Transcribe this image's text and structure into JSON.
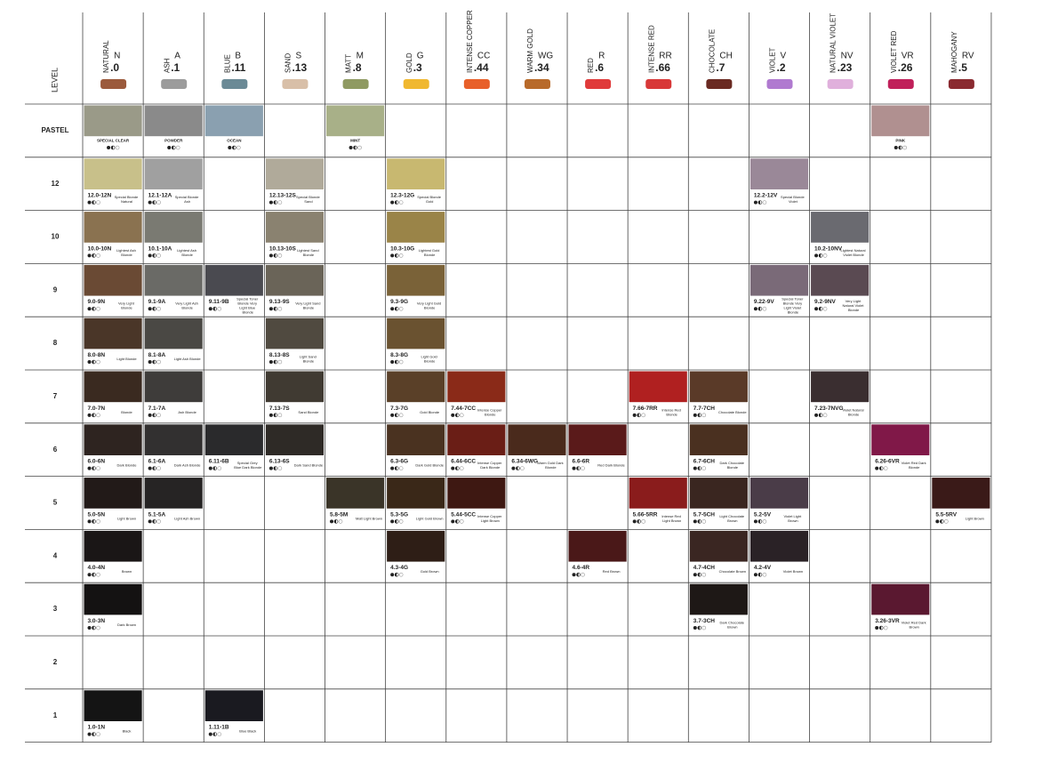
{
  "header": {
    "level_label": "LEVEL"
  },
  "columns": [
    {
      "family": "NATURAL",
      "code": "N",
      "suffix": ".0",
      "color": "#9b5a3c"
    },
    {
      "family": "ASH",
      "code": "A",
      "suffix": ".1",
      "color": "#9c9c9c"
    },
    {
      "family": "BLUE",
      "code": "B",
      "suffix": ".11",
      "color": "#6b8a96"
    },
    {
      "family": "SAND",
      "code": "S",
      "suffix": ".13",
      "color": "#d8bfa8"
    },
    {
      "family": "MATT",
      "code": "M",
      "suffix": ".8",
      "color": "#8f9a62"
    },
    {
      "family": "GOLD",
      "code": "G",
      "suffix": ".3",
      "color": "#f0b830"
    },
    {
      "family": "INTENSE COPPER",
      "code": "CC",
      "suffix": ".44",
      "color": "#e8602a"
    },
    {
      "family": "WARM GOLD",
      "code": "WG",
      "suffix": ".34",
      "color": "#b86a2a"
    },
    {
      "family": "RED",
      "code": "R",
      "suffix": ".6",
      "color": "#e03a3a"
    },
    {
      "family": "INTENSE RED",
      "code": "RR",
      "suffix": ".66",
      "color": "#d83838"
    },
    {
      "family": "CHOCOLATE",
      "code": "CH",
      "suffix": ".7",
      "color": "#6a2a22"
    },
    {
      "family": "VIOLET",
      "code": "V",
      "suffix": ".2",
      "color": "#b07ad0"
    },
    {
      "family": "NATURAL VIOLET",
      "code": "NV",
      "suffix": ".23",
      "color": "#e0b0dc"
    },
    {
      "family": "VIOLET RED",
      "code": "VR",
      "suffix": ".26",
      "color": "#c0205a"
    },
    {
      "family": "MAHOGANY",
      "code": "RV",
      "suffix": ".5",
      "color": "#8a2a30"
    }
  ],
  "rows": [
    {
      "level": "PASTEL",
      "cells": [
        {
          "name": "SPECIAL CLEAR",
          "color": "#9a9a88"
        },
        {
          "name": "POWDER",
          "color": "#8a8a8a"
        },
        {
          "name": "OCEAN",
          "color": "#8aa0b0"
        },
        null,
        {
          "name": "MINT",
          "color": "#a8b088"
        },
        null,
        null,
        null,
        null,
        null,
        null,
        null,
        null,
        {
          "name": "PINK",
          "color": "#b09090"
        },
        null
      ]
    },
    {
      "level": "12",
      "cells": [
        {
          "code": "12.0-12N",
          "name": "Special Blonde Natural",
          "color": "#c8c08a"
        },
        {
          "code": "12.1-12A",
          "name": "Special Blonde Ash",
          "color": "#a0a0a0"
        },
        null,
        {
          "code": "12.13-12S",
          "name": "Special Blonde Sand",
          "color": "#b0aa9a"
        },
        null,
        {
          "code": "12.3-12G",
          "name": "Special Blonde Gold",
          "color": "#c8b870"
        },
        null,
        null,
        null,
        null,
        null,
        {
          "code": "12.2-12V",
          "name": "Special Blonde Violet",
          "color": "#9a8898"
        },
        null,
        null,
        null
      ]
    },
    {
      "level": "10",
      "cells": [
        {
          "code": "10.0-10N",
          "name": "Lightest Ash Blonde",
          "color": "#8a7250"
        },
        {
          "code": "10.1-10A",
          "name": "Lightest Ash Blonde",
          "color": "#7a7a72"
        },
        null,
        {
          "code": "10.13-10S",
          "name": "Lightest Sand Blonde",
          "color": "#8a8270"
        },
        null,
        {
          "code": "10.3-10G",
          "name": "Lightest Gold Blonde",
          "color": "#9a8448"
        },
        null,
        null,
        null,
        null,
        null,
        null,
        {
          "code": "10.2-10NV",
          "name": "Lightest Natural Violet Blonde",
          "color": "#6a6a70"
        },
        null,
        null
      ]
    },
    {
      "level": "9",
      "cells": [
        {
          "code": "9.0-9N",
          "name": "Very Light Blonde",
          "color": "#6a4a34"
        },
        {
          "code": "9.1-9A",
          "name": "Very Light Ash Blonde",
          "color": "#6a6a66"
        },
        {
          "code": "9.11-9B",
          "name": "Special Toner Blonde Very Light Blue Blonde",
          "color": "#4a4a50"
        },
        {
          "code": "9.13-9S",
          "name": "Very Light Sand Blonde",
          "color": "#6a6458"
        },
        null,
        {
          "code": "9.3-9G",
          "name": "Very Light Gold Blonde",
          "color": "#7a6238"
        },
        null,
        null,
        null,
        null,
        null,
        {
          "code": "9.22-9V",
          "name": "Special Toner Blonde Very Light Violet Blonde",
          "color": "#7a6a78"
        },
        {
          "code": "9.2-9NV",
          "name": "Very Light Natural Violet Blonde",
          "color": "#5a4a52"
        },
        null,
        null
      ]
    },
    {
      "level": "8",
      "cells": [
        {
          "code": "8.0-8N",
          "name": "Light Blonde",
          "color": "#4a3628"
        },
        {
          "code": "8.1-8A",
          "name": "Light Ash Blonde",
          "color": "#4a4844"
        },
        null,
        {
          "code": "8.13-8S",
          "name": "Light Sand Blonde",
          "color": "#504a40"
        },
        null,
        {
          "code": "8.3-8G",
          "name": "Light Gold Blonde",
          "color": "#6a5230"
        },
        null,
        null,
        null,
        null,
        null,
        null,
        null,
        null,
        null
      ]
    },
    {
      "level": "7",
      "cells": [
        {
          "code": "7.0-7N",
          "name": "Blonde",
          "color": "#3a2a20"
        },
        {
          "code": "7.1-7A",
          "name": "Ash Blonde",
          "color": "#3e3c3a"
        },
        null,
        {
          "code": "7.13-7S",
          "name": "Sand Blonde",
          "color": "#403a32"
        },
        null,
        {
          "code": "7.3-7G",
          "name": "Gold Blonde",
          "color": "#5a4028"
        },
        {
          "code": "7.44-7CC",
          "name": "Intense Copper Blonde",
          "color": "#8a2a18"
        },
        null,
        null,
        {
          "code": "7.66-7RR",
          "name": "Intense Red Blonde",
          "color": "#b02020"
        },
        {
          "code": "7.7-7CH",
          "name": "Chocolate Blonde",
          "color": "#5a3a28"
        },
        null,
        {
          "code": "7.23-7NVG",
          "name": "Violet Natural Blonde",
          "color": "#3a2e30"
        },
        null,
        null
      ]
    },
    {
      "level": "6",
      "cells": [
        {
          "code": "6.0-6N",
          "name": "Dark Blonde",
          "color": "#2e2420"
        },
        {
          "code": "6.1-6A",
          "name": "Dark Ash Blonde",
          "color": "#323030"
        },
        {
          "code": "6.11-6B",
          "name": "Special Grey Blue Dark Blonde",
          "color": "#2a2a2c"
        },
        {
          "code": "6.13-6S",
          "name": "Dark Sand Blonde",
          "color": "#2e2a26"
        },
        null,
        {
          "code": "6.3-6G",
          "name": "Dark Gold Blonde",
          "color": "#4a3220"
        },
        {
          "code": "6.44-6CC",
          "name": "Intense Copper Dark Blonde",
          "color": "#6a1e16"
        },
        {
          "code": "6.34-6WG",
          "name": "Warm Gold Dark Blonde",
          "color": "#4a2a1c"
        },
        {
          "code": "6.6-6R",
          "name": "Red Dark Blonde",
          "color": "#5a1a1a"
        },
        null,
        {
          "code": "6.7-6CH",
          "name": "Dark Chocolate Blonde",
          "color": "#4a3020"
        },
        null,
        null,
        {
          "code": "6.26-6VR",
          "name": "Violet Red Dark Blonde",
          "color": "#801848"
        },
        null
      ]
    },
    {
      "level": "5",
      "cells": [
        {
          "code": "5.0-5N",
          "name": "Light Brown",
          "color": "#221a18"
        },
        {
          "code": "5.1-5A",
          "name": "Light Ash Brown",
          "color": "#262424"
        },
        null,
        null,
        {
          "code": "5.8-5M",
          "name": "Matt Light Brown",
          "color": "#3a3428"
        },
        {
          "code": "5.3-5G",
          "name": "Light Gold Brown",
          "color": "#3a2818"
        },
        {
          "code": "5.44-5CC",
          "name": "Intense Copper Light Brown",
          "color": "#3e1812"
        },
        null,
        null,
        {
          "code": "5.66-5RR",
          "name": "Intense Red Light Brown",
          "color": "#8a1c1c"
        },
        {
          "code": "5.7-5CH",
          "name": "Light Chocolate Brown",
          "color": "#3a2620"
        },
        {
          "code": "5.2-5V",
          "name": "Violet Light Brown",
          "color": "#4a3c48"
        },
        null,
        null,
        {
          "code": "5.5-5RV",
          "name": "Light Brown",
          "color": "#3a1a18"
        }
      ]
    },
    {
      "level": "4",
      "cells": [
        {
          "code": "4.0-4N",
          "name": "Brown",
          "color": "#1a1616"
        },
        null,
        null,
        null,
        null,
        {
          "code": "4.3-4G",
          "name": "Gold Brown",
          "color": "#2e1e16"
        },
        null,
        null,
        {
          "code": "4.6-4R",
          "name": "Red Brown",
          "color": "#4a1818"
        },
        null,
        {
          "code": "4.7-4CH",
          "name": "Chocolate Brown",
          "color": "#3a2622"
        },
        {
          "code": "4.2-4V",
          "name": "Violet Brown",
          "color": "#2a2226"
        },
        null,
        null,
        null
      ]
    },
    {
      "level": "3",
      "cells": [
        {
          "code": "3.0-3N",
          "name": "Dark Brown",
          "color": "#141212"
        },
        null,
        null,
        null,
        null,
        null,
        null,
        null,
        null,
        null,
        {
          "code": "3.7-3CH",
          "name": "Dark Chocolate Brown",
          "color": "#1e1816"
        },
        null,
        null,
        {
          "code": "3.26-3VR",
          "name": "Violet Red Dark Brown",
          "color": "#5a1830"
        },
        null
      ]
    },
    {
      "level": "2",
      "cells": [
        null,
        null,
        null,
        null,
        null,
        null,
        null,
        null,
        null,
        null,
        null,
        null,
        null,
        null,
        null
      ]
    },
    {
      "level": "1",
      "cells": [
        {
          "code": "1.0-1N",
          "name": "Black",
          "color": "#141414"
        },
        null,
        {
          "code": "1.11-1B",
          "name": "Blue Black",
          "color": "#1a1a20"
        },
        null,
        null,
        null,
        null,
        null,
        null,
        null,
        null,
        null,
        null,
        null,
        null
      ]
    }
  ]
}
